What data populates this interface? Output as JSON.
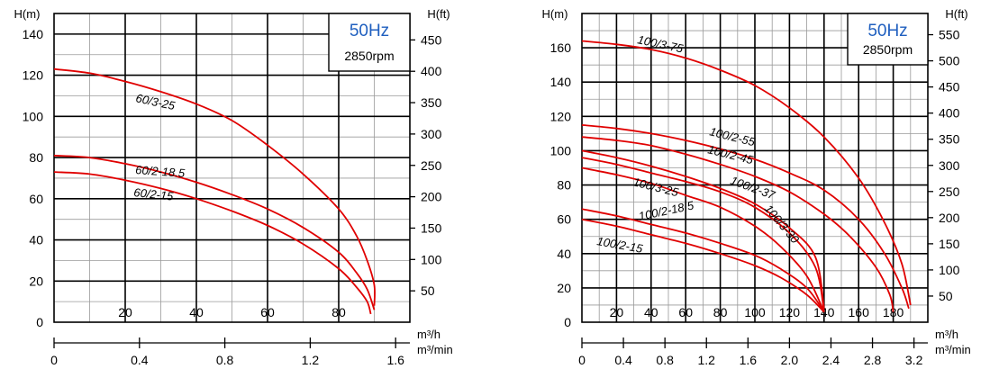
{
  "chart_data": [
    {
      "type": "line",
      "left_label": "H(m)",
      "right_label": "H(ft)",
      "flow_unit_h": "m³/h",
      "flow_unit_min": "m³/min",
      "freq_label": "50Hz",
      "rpm_label": "2850rpm",
      "x_range_m3h": [
        0,
        100
      ],
      "y_range_m": [
        0,
        150
      ],
      "y_ticks_m": [
        "0",
        "20",
        "40",
        "60",
        "80",
        "100",
        "120",
        "140"
      ],
      "x_ticks_m3h": [
        "20",
        "40",
        "60",
        "80"
      ],
      "x_ticks_m3min": [
        "0",
        "0.4",
        "0.8",
        "1.2",
        "1.6"
      ],
      "y_ticks_ft": [
        "50",
        "100",
        "150",
        "200",
        "250",
        "300",
        "350",
        "400",
        "450"
      ],
      "grid": true,
      "series": [
        {
          "name": "60/3-25",
          "x": [
            0,
            10,
            20,
            30,
            40,
            50,
            60,
            70,
            80,
            85,
            88,
            90,
            90
          ],
          "y": [
            123,
            121,
            117,
            112,
            106,
            98,
            86,
            72,
            55,
            42,
            30,
            18,
            8
          ]
        },
        {
          "name": "60/2-18.5",
          "x": [
            0,
            10,
            20,
            30,
            40,
            50,
            60,
            70,
            80,
            85,
            88,
            90
          ],
          "y": [
            81,
            80,
            77,
            73,
            68,
            62,
            55,
            46,
            34,
            24,
            16,
            6
          ]
        },
        {
          "name": "60/2-15",
          "x": [
            0,
            10,
            20,
            30,
            40,
            50,
            60,
            70,
            80,
            85,
            88,
            89
          ],
          "y": [
            73,
            72,
            69,
            65,
            60,
            54,
            47,
            38,
            26,
            17,
            10,
            4
          ]
        }
      ]
    },
    {
      "type": "line",
      "left_label": "H(m)",
      "right_label": "H(ft)",
      "flow_unit_h": "m³/h",
      "flow_unit_min": "m³/min",
      "freq_label": "50Hz",
      "rpm_label": "2850rpm",
      "x_range_m3h": [
        0,
        200
      ],
      "y_range_m": [
        0,
        180
      ],
      "y_ticks_m": [
        "0",
        "20",
        "40",
        "60",
        "80",
        "100",
        "120",
        "140",
        "160"
      ],
      "x_ticks_m3h": [
        "20",
        "40",
        "60",
        "80",
        "100",
        "120",
        "140",
        "160",
        "180"
      ],
      "x_ticks_m3min": [
        "0",
        "0.4",
        "0.8",
        "1.2",
        "1.6",
        "2.0",
        "2.4",
        "2.8",
        "3.2"
      ],
      "y_ticks_ft": [
        "50",
        "100",
        "150",
        "200",
        "250",
        "300",
        "350",
        "400",
        "450",
        "500",
        "550"
      ],
      "grid": true,
      "series": [
        {
          "name": "100/3-75",
          "x": [
            0,
            20,
            40,
            60,
            80,
            100,
            120,
            140,
            160,
            175,
            185,
            190
          ],
          "y": [
            164,
            162,
            159,
            154,
            147,
            138,
            125,
            108,
            84,
            58,
            34,
            10
          ]
        },
        {
          "name": "100/2-55",
          "x": [
            0,
            20,
            40,
            60,
            80,
            100,
            120,
            140,
            160,
            175,
            185,
            189
          ],
          "y": [
            115,
            113,
            110,
            106,
            101,
            95,
            87,
            77,
            60,
            40,
            20,
            8
          ]
        },
        {
          "name": "100/2-45",
          "x": [
            0,
            20,
            40,
            60,
            80,
            100,
            120,
            140,
            155,
            170,
            178,
            180
          ],
          "y": [
            108,
            106,
            103,
            98,
            92,
            85,
            76,
            63,
            50,
            32,
            16,
            6
          ]
        },
        {
          "name": "100/2-37",
          "x": [
            0,
            20,
            40,
            60,
            80,
            100,
            120,
            135,
            140
          ],
          "y": [
            100,
            96,
            91,
            85,
            78,
            69,
            55,
            38,
            8
          ]
        },
        {
          "name": "100/3-30",
          "x": [
            0,
            20,
            40,
            60,
            80,
            100,
            120,
            135,
            140
          ],
          "y": [
            96,
            92,
            87,
            82,
            76,
            67,
            52,
            32,
            6
          ]
        },
        {
          "name": "100/3-25",
          "x": [
            0,
            20,
            40,
            60,
            80,
            100,
            115,
            130,
            140
          ],
          "y": [
            90,
            86,
            81,
            74,
            67,
            56,
            44,
            27,
            6
          ]
        },
        {
          "name": "100/2-18.5",
          "x": [
            0,
            20,
            40,
            60,
            80,
            100,
            115,
            130,
            140
          ],
          "y": [
            66,
            62,
            57,
            52,
            46,
            39,
            31,
            20,
            6
          ]
        },
        {
          "name": "100/2-15",
          "x": [
            0,
            20,
            40,
            60,
            80,
            100,
            115,
            130,
            140
          ],
          "y": [
            60,
            56,
            51,
            46,
            40,
            33,
            26,
            16,
            6
          ]
        }
      ]
    }
  ]
}
